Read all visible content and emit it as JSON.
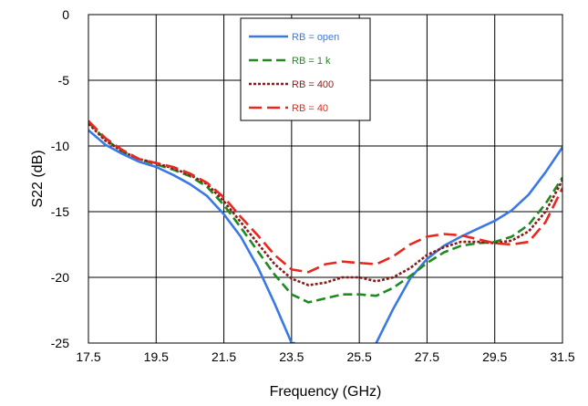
{
  "chart_data": {
    "type": "line",
    "title": "",
    "xlabel": "Frequency (GHz)",
    "ylabel": "S22 (dB)",
    "xlim": [
      17.5,
      31.5
    ],
    "ylim": [
      -25,
      0
    ],
    "x_ticks": [
      17.5,
      19.5,
      21.5,
      23.5,
      25.5,
      27.5,
      29.5,
      31.5
    ],
    "x_tick_labels": [
      "17.5",
      "19.5",
      "21.5",
      "23.5",
      "25.5",
      "27.5",
      "29.5",
      "31.5"
    ],
    "y_ticks": [
      0,
      -5,
      -10,
      -15,
      -20,
      -25
    ],
    "y_tick_labels": [
      "0",
      "-5",
      "-10",
      "-15",
      "-20",
      "-25"
    ],
    "grid": true,
    "legend_position": "top-center",
    "series": [
      {
        "name": "RB = open",
        "color": "#3a78e6",
        "style": "solid",
        "x": [
          17.5,
          18.0,
          18.5,
          19.0,
          19.5,
          20.0,
          20.5,
          21.0,
          21.5,
          22.0,
          22.5,
          23.0,
          23.5,
          23.6,
          null,
          26.0,
          26.5,
          27.0,
          27.5,
          28.0,
          28.5,
          29.0,
          29.5,
          30.0,
          30.5,
          31.0,
          31.5
        ],
        "values": [
          -8.8,
          -9.9,
          -10.6,
          -11.2,
          -11.6,
          -12.2,
          -12.9,
          -13.8,
          -15.2,
          -16.9,
          -19.2,
          -22.0,
          -25.0,
          -25.0,
          null,
          -25.0,
          -22.4,
          -20.1,
          -18.6,
          -17.6,
          -16.9,
          -16.3,
          -15.7,
          -14.9,
          -13.7,
          -12.0,
          -10.1
        ]
      },
      {
        "name": "RB = 1 k",
        "color": "#1f8a1f",
        "style": "dashed",
        "x": [
          17.5,
          18.0,
          18.5,
          19.0,
          19.5,
          20.0,
          20.5,
          21.0,
          21.5,
          22.0,
          22.5,
          23.0,
          23.5,
          24.0,
          24.5,
          25.0,
          25.5,
          26.0,
          26.5,
          27.0,
          27.5,
          28.0,
          28.5,
          29.0,
          29.5,
          30.0,
          30.5,
          31.0,
          31.5
        ],
        "values": [
          -8.2,
          -9.5,
          -10.4,
          -11.0,
          -11.4,
          -11.8,
          -12.3,
          -13.1,
          -14.5,
          -16.2,
          -18.0,
          -19.8,
          -21.3,
          -21.9,
          -21.6,
          -21.3,
          -21.3,
          -21.4,
          -20.8,
          -19.9,
          -18.9,
          -18.1,
          -17.6,
          -17.4,
          -17.3,
          -16.9,
          -16.0,
          -14.4,
          -12.4
        ]
      },
      {
        "name": "RB = 400",
        "color": "#8b1a1a",
        "style": "dotted",
        "x": [
          17.5,
          18.0,
          18.5,
          19.0,
          19.5,
          20.0,
          20.5,
          21.0,
          21.5,
          22.0,
          22.5,
          23.0,
          23.5,
          24.0,
          24.5,
          25.0,
          25.5,
          26.0,
          26.5,
          27.0,
          27.5,
          28.0,
          28.5,
          29.0,
          29.5,
          30.0,
          30.5,
          31.0,
          31.5
        ],
        "values": [
          -8.3,
          -9.6,
          -10.4,
          -11.0,
          -11.3,
          -11.7,
          -12.2,
          -12.9,
          -14.2,
          -15.8,
          -17.4,
          -19.0,
          -20.1,
          -20.6,
          -20.4,
          -20.0,
          -20.0,
          -20.3,
          -20.0,
          -19.3,
          -18.3,
          -17.7,
          -17.3,
          -17.3,
          -17.4,
          -17.2,
          -16.5,
          -15.0,
          -12.6
        ]
      },
      {
        "name": "RB = 40",
        "color": "#e8281e",
        "style": "longdash",
        "x": [
          17.5,
          18.0,
          18.5,
          19.0,
          19.5,
          20.0,
          20.5,
          21.0,
          21.5,
          22.0,
          22.5,
          23.0,
          23.5,
          24.0,
          24.5,
          25.0,
          25.5,
          26.0,
          26.5,
          27.0,
          27.5,
          28.0,
          28.5,
          29.0,
          29.5,
          30.0,
          30.5,
          31.0,
          31.5
        ],
        "values": [
          -8.1,
          -9.4,
          -10.3,
          -11.0,
          -11.3,
          -11.6,
          -12.1,
          -12.8,
          -13.9,
          -15.4,
          -16.8,
          -18.3,
          -19.4,
          -19.6,
          -19.0,
          -18.8,
          -18.9,
          -19.0,
          -18.4,
          -17.5,
          -16.9,
          -16.7,
          -16.8,
          -17.1,
          -17.4,
          -17.5,
          -17.3,
          -15.8,
          -13.2
        ]
      }
    ]
  }
}
